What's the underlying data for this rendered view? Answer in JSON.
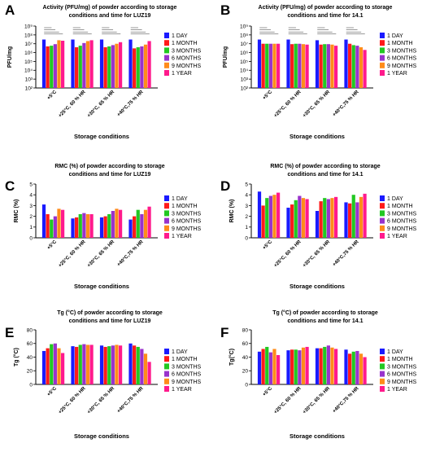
{
  "legend_colors": [
    "#1a1aff",
    "#ff1a1a",
    "#22c822",
    "#9932cc",
    "#ff8c1a",
    "#ff1a8c"
  ],
  "chart_data": [
    {
      "panel_letter": "A",
      "type": "bar",
      "title_lines": [
        "Activity (PFU/mg) of powder according to storage",
        "conditions and time for LUZ19"
      ],
      "xlabel": "Storage conditions",
      "ylabel": "PFU/mg",
      "yscale": "log",
      "ylim": [
        100,
        1000000000
      ],
      "yticks": [
        {
          "value": 100,
          "label": "10²"
        },
        {
          "value": 1000,
          "label": "10³"
        },
        {
          "value": 10000,
          "label": "10⁴"
        },
        {
          "value": 100000,
          "label": "10⁵"
        },
        {
          "value": 1000000,
          "label": "10⁶"
        },
        {
          "value": 10000000,
          "label": "10⁷"
        },
        {
          "value": 100000000,
          "label": "10⁸"
        },
        {
          "value": 1000000000,
          "label": "10⁹"
        }
      ],
      "categories": [
        "+5°C",
        "+25°C, 60 % HR",
        "+30°C, 65 % HR",
        "+40°C,75 % HR"
      ],
      "series": [
        {
          "name": "1 DAY",
          "values": [
            30000000,
            30000000,
            30000000,
            30000000
          ]
        },
        {
          "name": "1 MONTH",
          "values": [
            5000000,
            4000000,
            4000000,
            3000000
          ]
        },
        {
          "name": "3 MONTHS",
          "values": [
            6000000,
            6000000,
            5000000,
            4000000
          ]
        },
        {
          "name": "6 MONTHS",
          "values": [
            9000000,
            12000000,
            7000000,
            5000000
          ]
        },
        {
          "name": "9 MONTHS",
          "values": [
            25000000,
            20000000,
            10000000,
            8000000
          ]
        },
        {
          "name": "1 YEAR",
          "values": [
            22000000,
            25000000,
            15000000,
            20000000
          ]
        }
      ]
    },
    {
      "panel_letter": "B",
      "type": "bar",
      "title_lines": [
        "Activity (PFU/mg) of powder according to storage",
        "conditions and time for 14.1"
      ],
      "xlabel": "Storage conditions",
      "ylabel": "PFU/mg",
      "yscale": "log",
      "ylim": [
        100,
        1000000000
      ],
      "yticks": [
        {
          "value": 100,
          "label": "10²"
        },
        {
          "value": 1000,
          "label": "10³"
        },
        {
          "value": 10000,
          "label": "10⁴"
        },
        {
          "value": 100000,
          "label": "10⁵"
        },
        {
          "value": 1000000,
          "label": "10⁶"
        },
        {
          "value": 10000000,
          "label": "10⁷"
        },
        {
          "value": 100000000,
          "label": "10⁸"
        },
        {
          "value": 1000000000,
          "label": "10⁹"
        }
      ],
      "categories": [
        "+5°C",
        "+25°C, 60 % HR",
        "+30°C, 65 % HR",
        "+40°C,75 % HR"
      ],
      "series": [
        {
          "name": "1 DAY",
          "values": [
            30000000,
            30000000,
            25000000,
            30000000
          ]
        },
        {
          "name": "1 MONTH",
          "values": [
            10000000,
            9000000,
            8000000,
            10000000
          ]
        },
        {
          "name": "3 MONTHS",
          "values": [
            10000000,
            10000000,
            9000000,
            7000000
          ]
        },
        {
          "name": "6 MONTHS",
          "values": [
            10000000,
            10000000,
            9000000,
            6000000
          ]
        },
        {
          "name": "9 MONTHS",
          "values": [
            10000000,
            9000000,
            8000000,
            4000000
          ]
        },
        {
          "name": "1 YEAR",
          "values": [
            10000000,
            8000000,
            6000000,
            2000000
          ]
        }
      ]
    },
    {
      "panel_letter": "C",
      "type": "bar",
      "title_lines": [
        "RMC (%) of powder according to storage",
        "conditions and time for LUZ19"
      ],
      "xlabel": "Storage conditions",
      "ylabel": "RMC (%)",
      "yscale": "linear",
      "ylim": [
        0,
        5
      ],
      "yticks": [
        {
          "value": 0,
          "label": "0"
        },
        {
          "value": 1,
          "label": "1"
        },
        {
          "value": 2,
          "label": "2"
        },
        {
          "value": 3,
          "label": "3"
        },
        {
          "value": 4,
          "label": "4"
        },
        {
          "value": 5,
          "label": "5"
        }
      ],
      "categories": [
        "+5°C",
        "+25°C, 60 % HR",
        "+30°C, 65 % HR",
        "+40°C,75 % HR"
      ],
      "series": [
        {
          "name": "1 DAY",
          "values": [
            3.1,
            1.8,
            1.9,
            1.7
          ]
        },
        {
          "name": "1 MONTH",
          "values": [
            2.2,
            1.9,
            2.0,
            2.0
          ]
        },
        {
          "name": "3 MONTHS",
          "values": [
            1.7,
            2.2,
            2.2,
            2.6
          ]
        },
        {
          "name": "6 MONTHS",
          "values": [
            2.0,
            2.3,
            2.5,
            2.2
          ]
        },
        {
          "name": "9 MONTHS",
          "values": [
            2.7,
            2.2,
            2.7,
            2.6
          ]
        },
        {
          "name": "1 YEAR",
          "values": [
            2.6,
            2.2,
            2.6,
            2.9
          ]
        }
      ]
    },
    {
      "panel_letter": "D",
      "type": "bar",
      "title_lines": [
        "RMC (%) of powder according to storage",
        "conditions and time for 14.1"
      ],
      "xlabel": "Storage conditions",
      "ylabel": "RMC (%)",
      "yscale": "linear",
      "ylim": [
        0,
        5
      ],
      "yticks": [
        {
          "value": 0,
          "label": "0"
        },
        {
          "value": 1,
          "label": "1"
        },
        {
          "value": 2,
          "label": "2"
        },
        {
          "value": 3,
          "label": "3"
        },
        {
          "value": 4,
          "label": "4"
        },
        {
          "value": 5,
          "label": "5"
        }
      ],
      "categories": [
        "+5°C",
        "+25°C, 60 % HR",
        "+30°C, 65 % HR",
        "+40°C,75 % HR"
      ],
      "series": [
        {
          "name": "1 DAY",
          "values": [
            4.3,
            2.8,
            2.5,
            3.3
          ]
        },
        {
          "name": "1 MONTH",
          "values": [
            3.0,
            3.1,
            3.4,
            3.2
          ]
        },
        {
          "name": "3 MONTHS",
          "values": [
            3.7,
            3.5,
            3.7,
            4.0
          ]
        },
        {
          "name": "6 MONTHS",
          "values": [
            3.9,
            3.9,
            3.6,
            3.3
          ]
        },
        {
          "name": "9 MONTHS",
          "values": [
            4.0,
            3.7,
            3.7,
            3.8
          ]
        },
        {
          "name": "1 YEAR",
          "values": [
            4.2,
            3.6,
            3.8,
            4.1
          ]
        }
      ]
    },
    {
      "panel_letter": "E",
      "type": "bar",
      "title_lines": [
        "Tg (°C) of powder according to storage",
        "conditions and time for LUZ19"
      ],
      "xlabel": "Storage conditions",
      "ylabel": "Tg (°C)",
      "yscale": "linear",
      "ylim": [
        0,
        80
      ],
      "yticks": [
        {
          "value": 0,
          "label": "0"
        },
        {
          "value": 20,
          "label": "20"
        },
        {
          "value": 40,
          "label": "40"
        },
        {
          "value": 60,
          "label": "60"
        },
        {
          "value": 80,
          "label": "80"
        }
      ],
      "categories": [
        "+5°C",
        "+25°C, 60 % HR",
        "+30°C, 65 % HR",
        "+40°C,75 % HR"
      ],
      "series": [
        {
          "name": "1 DAY",
          "values": [
            49,
            56,
            57,
            60
          ]
        },
        {
          "name": "1 MONTH",
          "values": [
            53,
            55,
            55,
            57
          ]
        },
        {
          "name": "3 MONTHS",
          "values": [
            59,
            58,
            56,
            55
          ]
        },
        {
          "name": "6 MONTHS",
          "values": [
            60,
            59,
            57,
            52
          ]
        },
        {
          "name": "9 MONTHS",
          "values": [
            53,
            58,
            58,
            45
          ]
        },
        {
          "name": "1 YEAR",
          "values": [
            46,
            58,
            57,
            33
          ]
        }
      ]
    },
    {
      "panel_letter": "F",
      "type": "bar",
      "title_lines": [
        "Tg (°C) of powder according to storage",
        "conditions and time for 14.1"
      ],
      "xlabel": "Storage conditions",
      "ylabel": "Tg(°C)",
      "yscale": "linear",
      "ylim": [
        0,
        80
      ],
      "yticks": [
        {
          "value": 0,
          "label": "0"
        },
        {
          "value": 20,
          "label": "20"
        },
        {
          "value": 40,
          "label": "40"
        },
        {
          "value": 60,
          "label": "60"
        },
        {
          "value": 80,
          "label": "80"
        }
      ],
      "categories": [
        "+5°C",
        "+25°C, 60 % HR",
        "+30°C, 65 % HR",
        "+40°C,75 % HR"
      ],
      "series": [
        {
          "name": "1 DAY",
          "values": [
            48,
            50,
            53,
            51
          ]
        },
        {
          "name": "1 MONTH",
          "values": [
            52,
            51,
            53,
            45
          ]
        },
        {
          "name": "3 MONTHS",
          "values": [
            55,
            51,
            55,
            48
          ]
        },
        {
          "name": "6 MONTHS",
          "values": [
            47,
            50,
            57,
            49
          ]
        },
        {
          "name": "9 MONTHS",
          "values": [
            52,
            54,
            54,
            45
          ]
        },
        {
          "name": "1 YEAR",
          "values": [
            43,
            55,
            52,
            40
          ]
        }
      ]
    }
  ]
}
